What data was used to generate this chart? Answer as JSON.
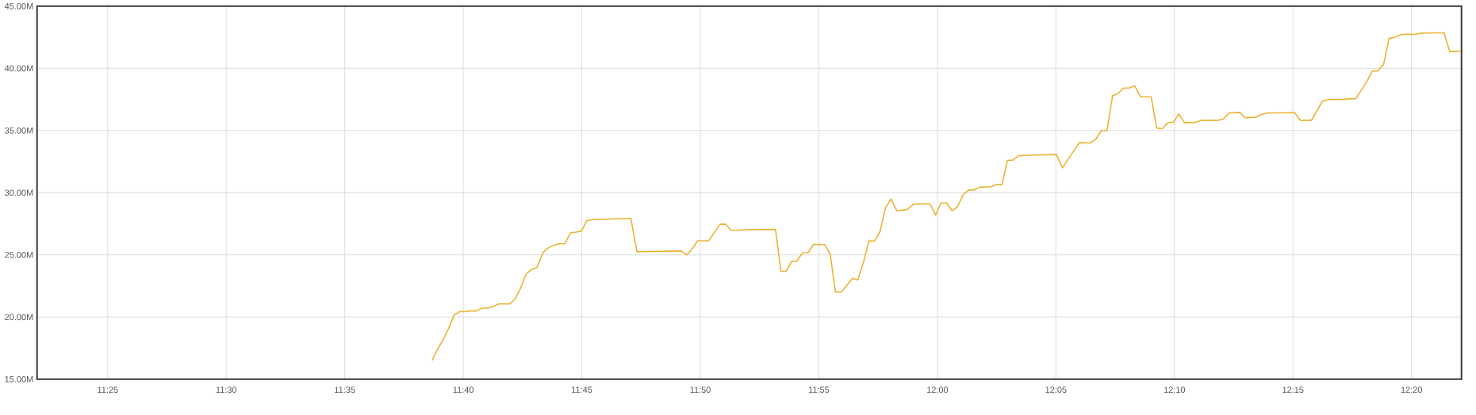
{
  "chart_data": {
    "type": "line",
    "x": [
      11.6447,
      11.6483,
      11.6522,
      11.656,
      11.6602,
      11.664,
      11.668,
      11.6713,
      11.6757,
      11.6797,
      11.6838,
      11.6875,
      11.6915,
      11.6993,
      11.703,
      11.7067,
      11.7108,
      11.7148,
      11.7185,
      11.7227,
      11.7263,
      11.7302,
      11.7342,
      11.738,
      11.7422,
      11.7462,
      11.7498,
      11.7537,
      11.7577,
      11.7845,
      11.7888,
      11.8198,
      11.8238,
      11.8275,
      11.8315,
      11.8392,
      11.8472,
      11.8512,
      11.855,
      11.8698,
      11.8862,
      11.89,
      11.8937,
      11.8975,
      11.901,
      11.9052,
      11.909,
      11.913,
      11.9208,
      11.9247,
      11.9283,
      11.9325,
      11.9403,
      11.944,
      11.948,
      11.9518,
      11.9558,
      11.9597,
      11.9635,
      11.9675,
      11.9715,
      11.9787,
      11.9832,
      11.9948,
      11.9987,
      12.0025,
      12.0063,
      12.0103,
      12.0142,
      12.0182,
      12.022,
      12.0258,
      12.0298,
      12.0377,
      12.0415,
      12.0455,
      12.0492,
      12.0532,
      12.057,
      12.0638,
      12.0837,
      12.088,
      12.0918,
      12.0998,
      12.1077,
      12.1115,
      12.1153,
      12.1193,
      12.1232,
      12.127,
      12.1308,
      12.135,
      12.1388,
      12.1428,
      12.1503,
      12.1542,
      12.1582,
      12.162,
      12.166,
      12.1698,
      12.1737,
      12.1815,
      12.1855,
      12.1968,
      12.2008,
      12.205,
      12.2125,
      12.2163,
      12.2242,
      12.228,
      12.2322,
      12.2512,
      12.2552,
      12.263,
      12.267,
      12.2708,
      12.2748,
      12.2863,
      12.2902,
      12.2942,
      12.3018,
      12.3058,
      12.3097,
      12.3137,
      12.3175,
      12.3213,
      12.3253,
      12.3292,
      12.3365,
      12.3403,
      12.3483,
      12.3562,
      12.3602,
      12.368
    ],
    "series": [
      {
        "color": "#eab334",
        "values": [
          16.5,
          17.36,
          18.11,
          18.99,
          20.15,
          20.43,
          20.43,
          20.49,
          20.49,
          20.72,
          20.72,
          20.83,
          21.05,
          21.05,
          21.45,
          22.25,
          23.45,
          23.83,
          23.98,
          25.18,
          25.55,
          25.76,
          25.89,
          25.89,
          26.79,
          26.83,
          26.92,
          27.76,
          27.84,
          27.93,
          25.25,
          25.31,
          24.99,
          25.46,
          26.13,
          26.13,
          27.46,
          27.46,
          26.96,
          27.03,
          27.05,
          23.68,
          23.68,
          24.48,
          24.48,
          25.16,
          25.16,
          25.85,
          25.83,
          25.04,
          22.01,
          22.01,
          23.1,
          22.98,
          24.39,
          26.11,
          26.11,
          26.88,
          28.79,
          29.49,
          28.55,
          28.64,
          29.07,
          29.11,
          28.19,
          29.19,
          29.19,
          28.55,
          28.87,
          29.86,
          30.22,
          30.22,
          30.44,
          30.48,
          30.65,
          30.65,
          32.6,
          32.62,
          32.97,
          33.01,
          33.07,
          32.0,
          32.67,
          34.02,
          34.0,
          34.32,
          35.0,
          35.0,
          37.81,
          37.96,
          38.41,
          38.43,
          38.58,
          37.71,
          37.71,
          35.2,
          35.15,
          35.63,
          35.67,
          36.33,
          35.63,
          35.65,
          35.82,
          35.82,
          35.91,
          36.4,
          36.46,
          36.03,
          36.08,
          36.31,
          36.4,
          36.44,
          35.82,
          35.82,
          36.61,
          37.36,
          37.49,
          37.51,
          37.56,
          37.56,
          38.91,
          39.79,
          39.79,
          40.3,
          42.4,
          42.49,
          42.7,
          42.74,
          42.74,
          42.83,
          42.85,
          42.85,
          41.35,
          41.39
        ]
      }
    ],
    "xlim": [
      11.367,
      12.3685
    ],
    "xticks": [
      {
        "value": 11.416667,
        "label": "11:25"
      },
      {
        "value": 11.5,
        "label": "11:30"
      },
      {
        "value": 11.583333,
        "label": "11:35"
      },
      {
        "value": 11.666667,
        "label": "11:40"
      },
      {
        "value": 11.75,
        "label": "11:45"
      },
      {
        "value": 11.833333,
        "label": "11:50"
      },
      {
        "value": 11.916667,
        "label": "11:55"
      },
      {
        "value": 12.0,
        "label": "12:00"
      },
      {
        "value": 12.083333,
        "label": "12:05"
      },
      {
        "value": 12.166667,
        "label": "12:10"
      },
      {
        "value": 12.25,
        "label": "12:15"
      },
      {
        "value": 12.333333,
        "label": "12:20"
      }
    ],
    "ylim": [
      15,
      45
    ],
    "yticks": [
      {
        "value": 15,
        "label": "15.00M"
      },
      {
        "value": 20,
        "label": "20.00M"
      },
      {
        "value": 25,
        "label": "25.00M"
      },
      {
        "value": 30,
        "label": "30.00M"
      },
      {
        "value": 35,
        "label": "35.00M"
      },
      {
        "value": 40,
        "label": "40.00M"
      },
      {
        "value": 45,
        "label": "45.00M"
      }
    ],
    "grid": true
  }
}
